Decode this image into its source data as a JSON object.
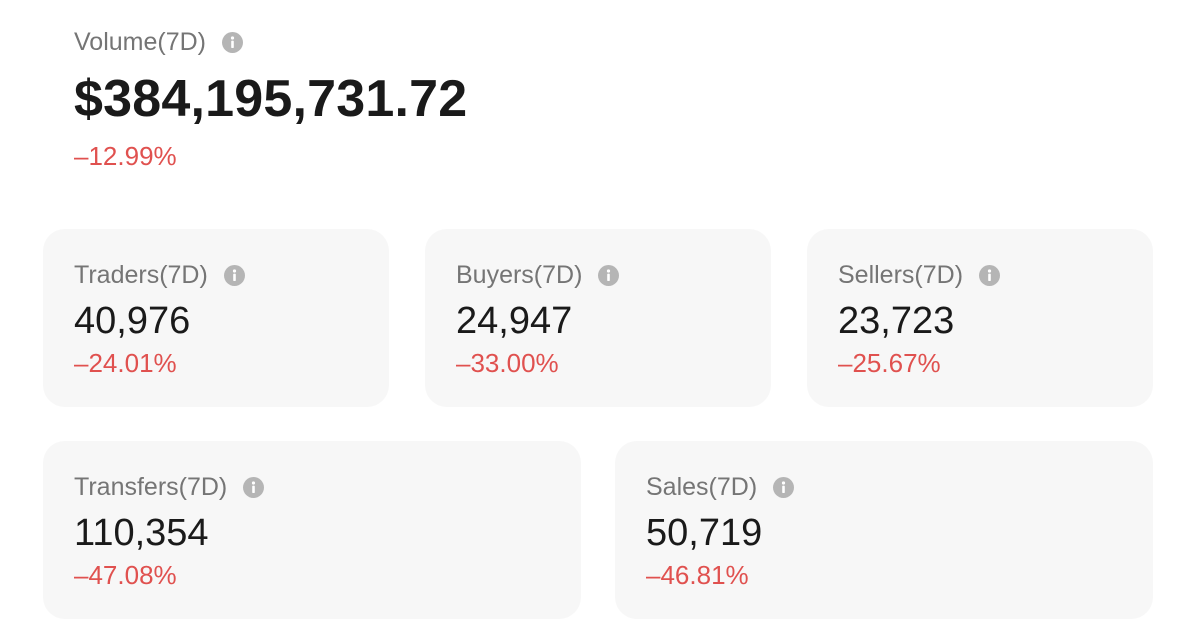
{
  "volume": {
    "label": "Volume(7D)",
    "value": "$384,195,731.72",
    "change": "–12.99%",
    "info_icon": "info-icon"
  },
  "stats_row1": [
    {
      "label": "Traders(7D)",
      "value": "40,976",
      "change": "–24.01%",
      "info_icon": "info-icon"
    },
    {
      "label": "Buyers(7D)",
      "value": "24,947",
      "change": "–33.00%",
      "info_icon": "info-icon"
    },
    {
      "label": "Sellers(7D)",
      "value": "23,723",
      "change": "–25.67%",
      "info_icon": "info-icon"
    }
  ],
  "stats_row2": [
    {
      "label": "Transfers(7D)",
      "value": "110,354",
      "change": "–47.08%",
      "info_icon": "info-icon"
    },
    {
      "label": "Sales(7D)",
      "value": "50,719",
      "change": "–46.81%",
      "info_icon": "info-icon"
    }
  ],
  "colors": {
    "negative": "#e0514f",
    "label": "#757575",
    "card_bg": "#f7f7f7",
    "icon": "#b5b5b5"
  }
}
